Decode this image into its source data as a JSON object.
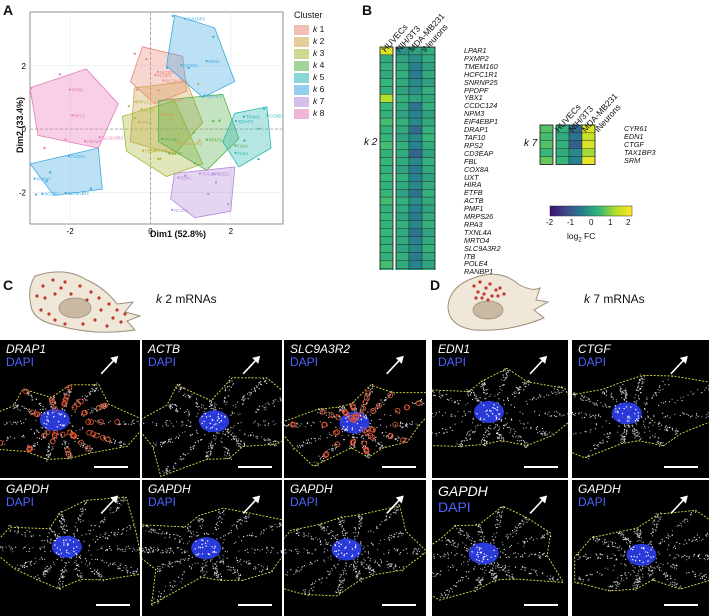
{
  "panel_labels": {
    "a": "A",
    "b": "B",
    "c": "C",
    "d": "D"
  },
  "chart_data": [
    {
      "type": "scatter",
      "xlabel": "Dim1 (52.8%)",
      "ylabel": "Dim2 (33.4%)",
      "xlim": [
        -3,
        3.3
      ],
      "ylim": [
        -3,
        3.7
      ],
      "xticks": [
        "-2",
        "0",
        "2"
      ],
      "yticks": [
        "2",
        "0",
        "-2"
      ],
      "legend_title": "Cluster",
      "legend_placement": "right",
      "series": [
        {
          "name": "k 1",
          "italic_k": true,
          "color": "#e8887a"
        },
        {
          "name": "k 2",
          "color": "#d2a24a"
        },
        {
          "name": "k 3",
          "color": "#a8b83a"
        },
        {
          "name": "k 4",
          "color": "#56b04a"
        },
        {
          "name": "k 5",
          "color": "#2bb6b2"
        },
        {
          "name": "k 6",
          "color": "#3fa9e0"
        },
        {
          "name": "k 7",
          "color": "#b38ad8"
        },
        {
          "name": "k 8",
          "color": "#e779b8"
        }
      ],
      "point_labels_visible": [
        "NCOR1",
        "FBXO38",
        "PLOD3",
        "LRRFIP1",
        "SLC9A3R2",
        "KLF2",
        "FBXW7",
        "LUZP1",
        "RPL3",
        "RPL41",
        "RPS8",
        "RPL37",
        "RPLP2",
        "CYR61",
        "CTGF",
        "RANBP1",
        "TRAM1",
        "ACTB",
        "FLNA",
        "EIF4EBP1",
        "IQGAP1",
        "RASSF3",
        "CCND1",
        "BCL2L12",
        "TAX1BP3",
        "SRM",
        "EDN1",
        "DDIT4"
      ]
    },
    {
      "type": "heatmap",
      "columns": [
        "HUVECs",
        "NIH/3T3",
        "MDA-MB231",
        "iNeurons"
      ],
      "row_groups": [
        {
          "label": "k 2",
          "genes": [
            "LPAR1",
            "PXMP2",
            "TMEM160",
            "HCFC1R1",
            "SNRNP25",
            "PPDPF",
            "YBX1",
            "CCDC124",
            "NPM3",
            "EIF4EBP1",
            "DRAP1",
            "TAF10",
            "RPS2",
            "CD3EAP",
            "FBL",
            "COX8A",
            "UXT",
            "HIRA",
            "ETFB",
            "ACTB",
            "PMF1",
            "MRPS26",
            "RPA3",
            "TXNL4A",
            "MRTO4",
            "SLC9A3R2",
            "ITB",
            "POLE4",
            "RANBP1"
          ]
        },
        {
          "label": "k 7",
          "genes": [
            "CYR61",
            "EDN1",
            "CTGF",
            "TAX1BP3",
            "SRM"
          ]
        }
      ],
      "colorbar": {
        "min": -2,
        "max": 2,
        "ticks": [
          "-2",
          "-1",
          "0",
          "1",
          "2"
        ],
        "label": "log",
        "label_sub": "2",
        "label_suffix": " FC",
        "colors": [
          "#3b0f70",
          "#3e4a89",
          "#26828e",
          "#35b779",
          "#b5de2b",
          "#fde725"
        ]
      },
      "values_k2": [
        [
          1.6,
          -0.2,
          0.1,
          0.3
        ],
        [
          0.2,
          0.1,
          -0.2,
          0.2
        ],
        [
          0.3,
          0.2,
          -0.4,
          0.1
        ],
        [
          0.2,
          0.3,
          -0.5,
          0.2
        ],
        [
          0.4,
          0.2,
          -0.3,
          0.1
        ],
        [
          0.3,
          0.1,
          -0.2,
          0.3
        ],
        [
          1.2,
          0.3,
          0.1,
          0.2
        ],
        [
          0.4,
          0.2,
          -0.6,
          0.3
        ],
        [
          0.3,
          0.1,
          -0.4,
          0.1
        ],
        [
          0.5,
          0.3,
          -0.3,
          0.2
        ],
        [
          0.3,
          0.2,
          -0.7,
          0.3
        ],
        [
          0.4,
          0.1,
          -0.3,
          0.4
        ],
        [
          0.5,
          0.3,
          -0.4,
          0.2
        ],
        [
          0.3,
          0.2,
          -0.8,
          0.1
        ],
        [
          0.4,
          0.2,
          -0.3,
          0.3
        ],
        [
          0.3,
          0.1,
          -0.5,
          0.2
        ],
        [
          0.4,
          0.3,
          -0.4,
          0.1
        ],
        [
          0.3,
          0.2,
          -0.3,
          0.2
        ],
        [
          0.4,
          0.1,
          -0.6,
          0.3
        ],
        [
          0.5,
          0.3,
          -0.2,
          0.2
        ],
        [
          0.3,
          0.2,
          -0.4,
          0.1
        ],
        [
          0.4,
          0.1,
          -0.5,
          0.2
        ],
        [
          0.3,
          0.3,
          -0.3,
          0.3
        ],
        [
          0.4,
          0.2,
          -0.6,
          0.1
        ],
        [
          0.3,
          0.2,
          -0.4,
          0.2
        ],
        [
          0.4,
          0.1,
          -0.3,
          0.3
        ],
        [
          0.3,
          0.3,
          -0.5,
          0.2
        ],
        [
          0.5,
          0.2,
          -0.4,
          0.1
        ],
        [
          0.3,
          0.1,
          -0.3,
          0.2
        ]
      ],
      "values_k7": [
        [
          0.6,
          0.3,
          -0.8,
          1.6
        ],
        [
          0.5,
          0.2,
          -0.6,
          1.4
        ],
        [
          0.6,
          0.3,
          -0.9,
          1.6
        ],
        [
          0.4,
          0.2,
          -0.3,
          1.1
        ],
        [
          0.7,
          0.4,
          -0.4,
          1.8
        ]
      ]
    }
  ],
  "panel_c": {
    "k": "k",
    "title_rest": " 2 mRNAs",
    "tiles": [
      {
        "gene": "DRAP1",
        "dapi": "DAPI"
      },
      {
        "gene": "ACTB",
        "dapi": "DAPI"
      },
      {
        "gene": "SLC9A3R2",
        "dapi": "DAPI"
      },
      {
        "gene": "GAPDH",
        "dapi": "DAPI"
      },
      {
        "gene": "GAPDH",
        "dapi": "DAPI"
      },
      {
        "gene": "GAPDH",
        "dapi": "DAPI"
      }
    ]
  },
  "panel_d": {
    "k": "k",
    "title_rest": " 7 mRNAs",
    "tiles": [
      {
        "gene": "EDN1",
        "dapi": "DAPI"
      },
      {
        "gene": "CTGF",
        "dapi": "DAPI"
      },
      {
        "gene": "GAPDH",
        "dapi": "DAPI"
      },
      {
        "gene": "GAPDH",
        "dapi": "DAPI"
      }
    ]
  }
}
